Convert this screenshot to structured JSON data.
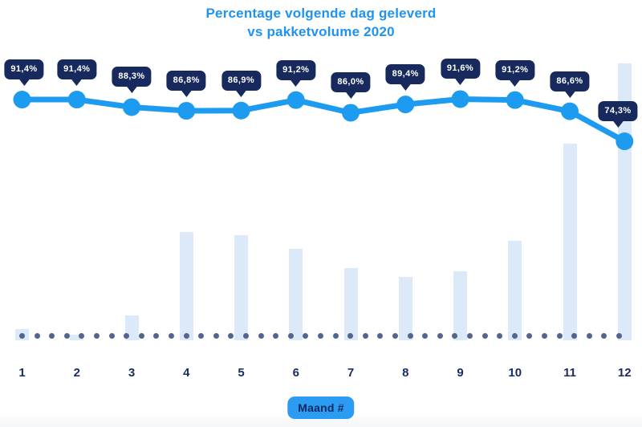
{
  "title": {
    "line1": "Percentage volgende dag geleverd",
    "line2": "vs pakketvolume 2020"
  },
  "x_axis": {
    "badge_label": "Maand #",
    "labels": [
      "1",
      "2",
      "3",
      "4",
      "5",
      "6",
      "7",
      "8",
      "9",
      "10",
      "11",
      "12"
    ]
  },
  "chart_data": {
    "type": "combo",
    "title": "Percentage volgende dag geleverd vs pakketvolume 2020",
    "xlabel": "Maand #",
    "categories": [
      "1",
      "2",
      "3",
      "4",
      "5",
      "6",
      "7",
      "8",
      "9",
      "10",
      "11",
      "12"
    ],
    "series": [
      {
        "name": "Percentage volgende dag geleverd",
        "type": "line",
        "unit": "%",
        "values": [
          91.4,
          91.4,
          88.3,
          86.8,
          86.9,
          91.2,
          86.0,
          89.4,
          91.6,
          91.2,
          86.6,
          74.3
        ],
        "point_labels": [
          "91,4%",
          "91,4%",
          "88,3%",
          "86,8%",
          "86,9%",
          "91,2%",
          "86,0%",
          "89,4%",
          "91,6%",
          "91,2%",
          "86,6%",
          "74,3%"
        ]
      },
      {
        "name": "Pakketvolume 2020",
        "type": "bar",
        "unit": "relative height (no value axis shown)",
        "values": [
          4,
          2,
          9,
          39,
          38,
          33,
          26,
          23,
          25,
          36,
          71,
          100
        ]
      }
    ],
    "legend": "none",
    "gridlines": "none",
    "baseline_style": "dotted"
  },
  "colors": {
    "title_blue": "#1e93f3",
    "line_blue": "#1d9bf0",
    "tooltip_navy": "#17295d",
    "label_navy": "#1a2c66",
    "bar_light_blue": "#dbe9f8",
    "baseline_dot": "#53648e",
    "badge_blue": "#2b9cf2"
  }
}
